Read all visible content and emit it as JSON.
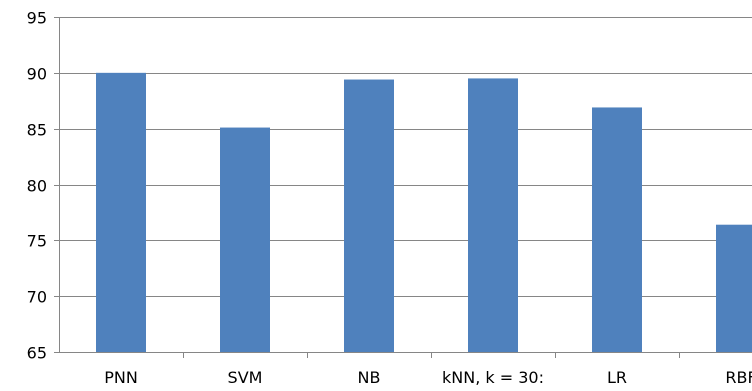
{
  "chart_data": {
    "type": "bar",
    "title": "",
    "xlabel": "",
    "ylabel": "",
    "categories": [
      "PNN",
      "SVM",
      "NB",
      "kNN, k = 30:",
      "LR",
      "RBF"
    ],
    "values": [
      90.0,
      85.1,
      89.4,
      89.5,
      86.9,
      76.4
    ],
    "ylim": [
      65,
      95
    ],
    "yticks": [
      65,
      70,
      75,
      80,
      85,
      90,
      95
    ],
    "grid": true,
    "legend": "none",
    "bar_color": "#4F81BD",
    "grid_color": "#868686",
    "axis_color": "#868686"
  }
}
